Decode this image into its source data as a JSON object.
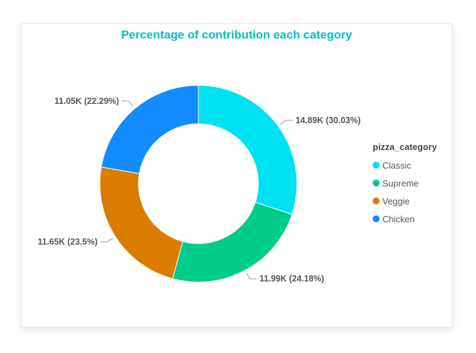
{
  "chart_data": {
    "type": "donut",
    "title": "Percentage of contribution each category",
    "legend_title": "pizza_category",
    "legend_position": "right",
    "categories": [
      "Classic",
      "Supreme",
      "Veggie",
      "Chicken"
    ],
    "values": [
      14.89,
      11.99,
      11.65,
      11.05
    ],
    "percentages": [
      30.03,
      24.18,
      23.5,
      22.29
    ],
    "data_labels": [
      "14.89K (30.03%)",
      "11.99K (24.18%)",
      "11.65K (23.5%)",
      "11.05K (22.29%)"
    ],
    "colors": [
      "#00E1F2",
      "#00CC8A",
      "#D97C00",
      "#128CFF"
    ]
  },
  "title_color": "#00BFC4"
}
